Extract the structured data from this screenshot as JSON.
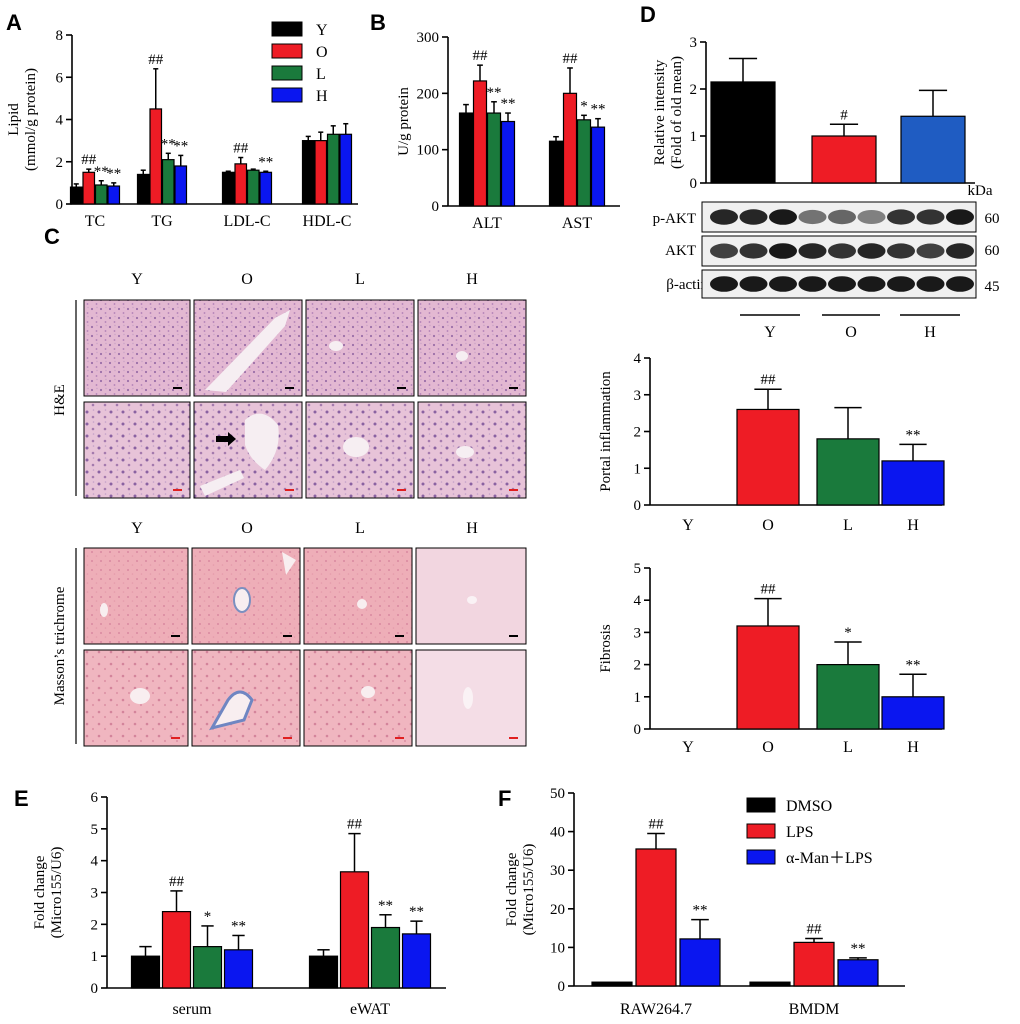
{
  "colors": {
    "Y": "#000000",
    "O": "#ee1c25",
    "L": "#1a7a3c",
    "H": "#0a16f0",
    "D_H": "#1f5cc2",
    "DMSO": "#000000",
    "LPS": "#ee1c25",
    "AMAN": "#0a16f0"
  },
  "panels": {
    "A": "A",
    "B": "B",
    "C": "C",
    "D": "D",
    "E": "E",
    "F": "F"
  },
  "chart_data": [
    {
      "id": "A",
      "type": "bar",
      "ylabel": "Lipid (mmol/g protein)",
      "ylabel_lines": [
        "Lipid",
        "(mmol/g protein)"
      ],
      "ylim": [
        0,
        8
      ],
      "yticks": [
        "0",
        "2",
        "4",
        "6",
        "8"
      ],
      "categories": [
        "TC",
        "TG",
        "LDL-C",
        "HDL-C"
      ],
      "legend": [
        "Y",
        "O",
        "L",
        "H"
      ],
      "series": [
        {
          "name": "Y",
          "values": [
            0.8,
            1.4,
            1.5,
            3.0
          ],
          "errors": [
            0.15,
            0.2,
            0.05,
            0.2
          ],
          "sig": [
            "",
            "",
            "",
            ""
          ]
        },
        {
          "name": "O",
          "values": [
            1.5,
            4.5,
            1.9,
            3.0
          ],
          "errors": [
            0.15,
            1.9,
            0.3,
            0.4
          ],
          "sig": [
            "##",
            "##",
            "##",
            ""
          ]
        },
        {
          "name": "L",
          "values": [
            0.9,
            2.1,
            1.6,
            3.3
          ],
          "errors": [
            0.2,
            0.3,
            0.05,
            0.4
          ],
          "sig": [
            "**",
            "**",
            "",
            ""
          ]
        },
        {
          "name": "H",
          "values": [
            0.85,
            1.8,
            1.5,
            3.3
          ],
          "errors": [
            0.15,
            0.5,
            0.05,
            0.5
          ],
          "sig": [
            "**",
            "**",
            "**",
            ""
          ]
        }
      ]
    },
    {
      "id": "B",
      "type": "bar",
      "ylabel": "U/g protein",
      "ylim": [
        0,
        300
      ],
      "yticks": [
        "0",
        "100",
        "200",
        "300"
      ],
      "categories": [
        "ALT",
        "AST"
      ],
      "series": [
        {
          "name": "Y",
          "values": [
            165,
            115
          ],
          "errors": [
            15,
            8
          ],
          "sig": [
            "",
            ""
          ]
        },
        {
          "name": "O",
          "values": [
            222,
            200
          ],
          "errors": [
            28,
            45
          ],
          "sig": [
            "##",
            "##"
          ]
        },
        {
          "name": "L",
          "values": [
            165,
            153
          ],
          "errors": [
            20,
            8
          ],
          "sig": [
            "**",
            "*"
          ]
        },
        {
          "name": "H",
          "values": [
            150,
            140
          ],
          "errors": [
            15,
            15
          ],
          "sig": [
            "**",
            "**"
          ]
        }
      ]
    },
    {
      "id": "D",
      "type": "bar",
      "ylabel": "Relative intensity (Fold of old mean)",
      "ylabel_lines": [
        "Relative intensity",
        "(Fold of old mean)"
      ],
      "ylim": [
        0,
        3
      ],
      "yticks": [
        "0",
        "1",
        "2",
        "3"
      ],
      "categories": [
        "Y",
        "O",
        "H"
      ],
      "values": [
        2.15,
        1.0,
        1.42
      ],
      "errors": [
        0.5,
        0.25,
        0.55
      ],
      "sig": [
        "",
        "#",
        ""
      ]
    },
    {
      "id": "portal",
      "type": "bar",
      "ylabel": "Portal inflammation",
      "ylim": [
        0,
        4
      ],
      "yticks": [
        "0",
        "1",
        "2",
        "3",
        "4"
      ],
      "categories": [
        "Y",
        "O",
        "L",
        "H"
      ],
      "values": [
        0,
        2.6,
        1.8,
        1.2
      ],
      "errors": [
        0,
        0.55,
        0.85,
        0.45
      ],
      "sig": [
        "",
        "##",
        "",
        "**"
      ]
    },
    {
      "id": "fibrosis",
      "type": "bar",
      "ylabel": "Fibrosis",
      "ylim": [
        0,
        5
      ],
      "yticks": [
        "0",
        "1",
        "2",
        "3",
        "4",
        "5"
      ],
      "categories": [
        "Y",
        "O",
        "L",
        "H"
      ],
      "values": [
        0,
        3.2,
        2.0,
        1.0
      ],
      "errors": [
        0,
        0.85,
        0.7,
        0.7
      ],
      "sig": [
        "",
        "##",
        "*",
        "**"
      ]
    },
    {
      "id": "E",
      "type": "bar",
      "ylabel": "Fold change (Micro155/U6)",
      "ylabel_lines": [
        "Fold change",
        "(Micro155/U6)"
      ],
      "ylim": [
        0,
        6
      ],
      "yticks": [
        "0",
        "1",
        "2",
        "3",
        "4",
        "5",
        "6"
      ],
      "categories": [
        "serum",
        "eWAT"
      ],
      "series": [
        {
          "name": "Y",
          "values": [
            1.0,
            1.0
          ],
          "errors": [
            0.3,
            0.2
          ],
          "sig": [
            "",
            ""
          ]
        },
        {
          "name": "O",
          "values": [
            2.4,
            3.65
          ],
          "errors": [
            0.65,
            1.2
          ],
          "sig": [
            "##",
            "##"
          ]
        },
        {
          "name": "L",
          "values": [
            1.3,
            1.9
          ],
          "errors": [
            0.65,
            0.4
          ],
          "sig": [
            "*",
            "**"
          ]
        },
        {
          "name": "H",
          "values": [
            1.2,
            1.7
          ],
          "errors": [
            0.45,
            0.4
          ],
          "sig": [
            "**",
            "**"
          ]
        }
      ]
    },
    {
      "id": "F",
      "type": "bar",
      "ylabel": "Fold change (Micro155/U6)",
      "ylabel_lines": [
        "Fold change",
        "(Micro155/U6)"
      ],
      "ylim": [
        0,
        50
      ],
      "yticks": [
        "0",
        "10",
        "20",
        "30",
        "40",
        "50"
      ],
      "categories": [
        "RAW264.7",
        "BMDM"
      ],
      "legend": [
        "DMSO",
        "LPS",
        "α-Man＋LPS"
      ],
      "series": [
        {
          "name": "DMSO",
          "values": [
            1.0,
            1.0
          ],
          "errors": [
            0,
            0
          ],
          "sig": [
            "",
            ""
          ]
        },
        {
          "name": "LPS",
          "values": [
            35.5,
            11.3
          ],
          "errors": [
            4,
            1
          ],
          "sig": [
            "##",
            "##"
          ]
        },
        {
          "name": "α-Man＋LPS",
          "values": [
            12.2,
            6.8
          ],
          "errors": [
            5,
            0.5
          ],
          "sig": [
            "**",
            "**"
          ]
        }
      ]
    }
  ],
  "panelC": {
    "he_columns": [
      "Y",
      "O",
      "L",
      "H"
    ],
    "masson_columns": [
      "Y",
      "O",
      "L",
      "H"
    ],
    "he_label": "H&E",
    "masson_label": "Masson’s trichrome"
  },
  "blot": {
    "kda_label": "kDa",
    "rows": [
      {
        "name": "p-AKT",
        "kda": "60"
      },
      {
        "name": "AKT",
        "kda": "60"
      },
      {
        "name": "β-actin",
        "kda": "45"
      }
    ],
    "groups": [
      "Y",
      "O",
      "H"
    ]
  }
}
